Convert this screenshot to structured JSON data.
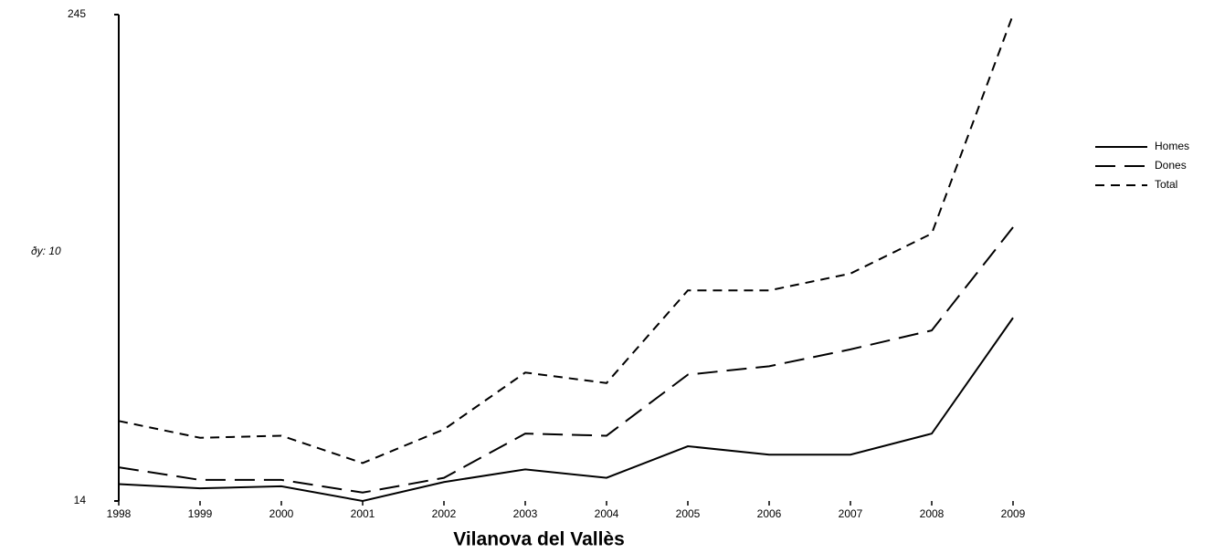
{
  "chart_data": {
    "type": "line",
    "title": "Vilanova del Vallès",
    "y_label": "ðy: 10",
    "categories": [
      "1998",
      "1999",
      "2000",
      "2001",
      "2002",
      "2003",
      "2004",
      "2005",
      "2006",
      "2007",
      "2008",
      "2009"
    ],
    "series": [
      {
        "name": "Homes",
        "color": "#000000",
        "dash": "solid",
        "values": [
          22,
          20,
          21,
          14,
          23,
          29,
          25,
          40,
          36,
          36,
          46,
          101
        ]
      },
      {
        "name": "Dones",
        "color": "#000000",
        "dash": "long-dash",
        "values": [
          30,
          24,
          24,
          18,
          25,
          46,
          45,
          74,
          78,
          86,
          95,
          144
        ]
      },
      {
        "name": "Total",
        "color": "#000000",
        "dash": "short-dash",
        "values": [
          52,
          44,
          45,
          32,
          48,
          75,
          70,
          114,
          114,
          122,
          141,
          245
        ]
      }
    ],
    "ylim": [
      14,
      245
    ],
    "yticks": [
      14,
      245
    ],
    "legend": "right"
  }
}
